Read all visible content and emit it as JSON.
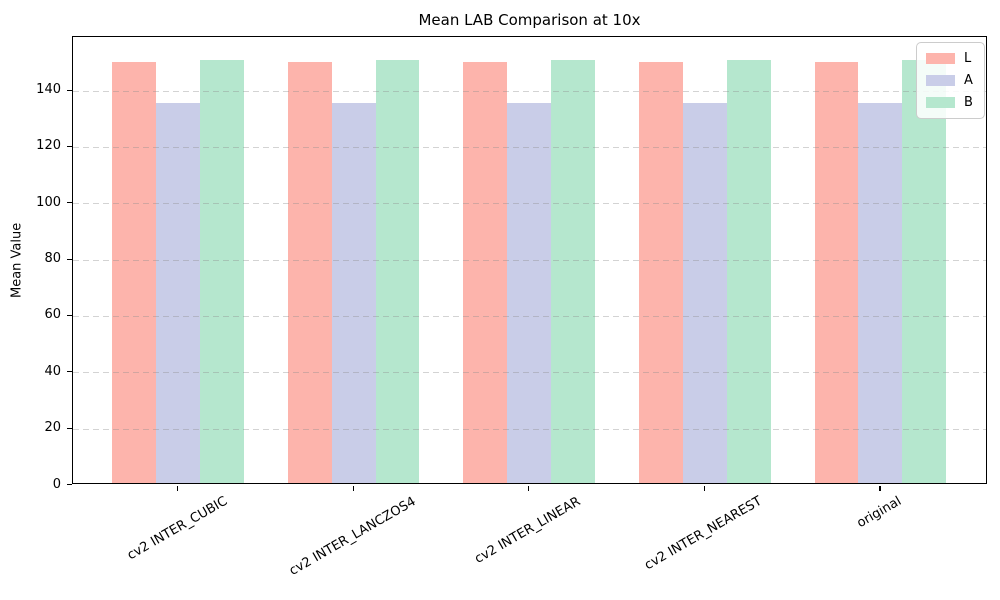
{
  "chart_data": {
    "type": "bar",
    "title": "Mean LAB Comparison at 10x",
    "xlabel": "",
    "ylabel": "Mean Value",
    "categories": [
      "cv2 INTER_CUBIC",
      "cv2 INTER_LANCZOS4",
      "cv2 INTER_LINEAR",
      "cv2 INTER_NEAREST",
      "original"
    ],
    "series": [
      {
        "name": "L",
        "color": "#fdb4ac",
        "values": [
          150.0,
          150.0,
          150.0,
          150.0,
          150.0
        ]
      },
      {
        "name": "A",
        "color": "#c9cde8",
        "values": [
          135.5,
          135.5,
          135.5,
          135.5,
          135.5
        ]
      },
      {
        "name": "B",
        "color": "#b5e7ce",
        "values": [
          151.0,
          151.0,
          151.0,
          151.0,
          151.0
        ]
      }
    ],
    "ylim": [
      0,
      159
    ],
    "yticks": [
      0,
      20,
      40,
      60,
      80,
      100,
      120,
      140
    ],
    "grid": "horizontal-dashed",
    "legend": {
      "position": "upper-right",
      "entries": [
        "L",
        "A",
        "B"
      ]
    },
    "xtick_rotation_deg": 30
  },
  "style": {
    "background": "#ffffff",
    "spine_color": "#000000",
    "text_color": "#000000",
    "grid_color": "rgba(140,140,140,0.38)",
    "legend_border": "#cccccc",
    "legend_background": "rgba(255,255,255,0.85)"
  }
}
